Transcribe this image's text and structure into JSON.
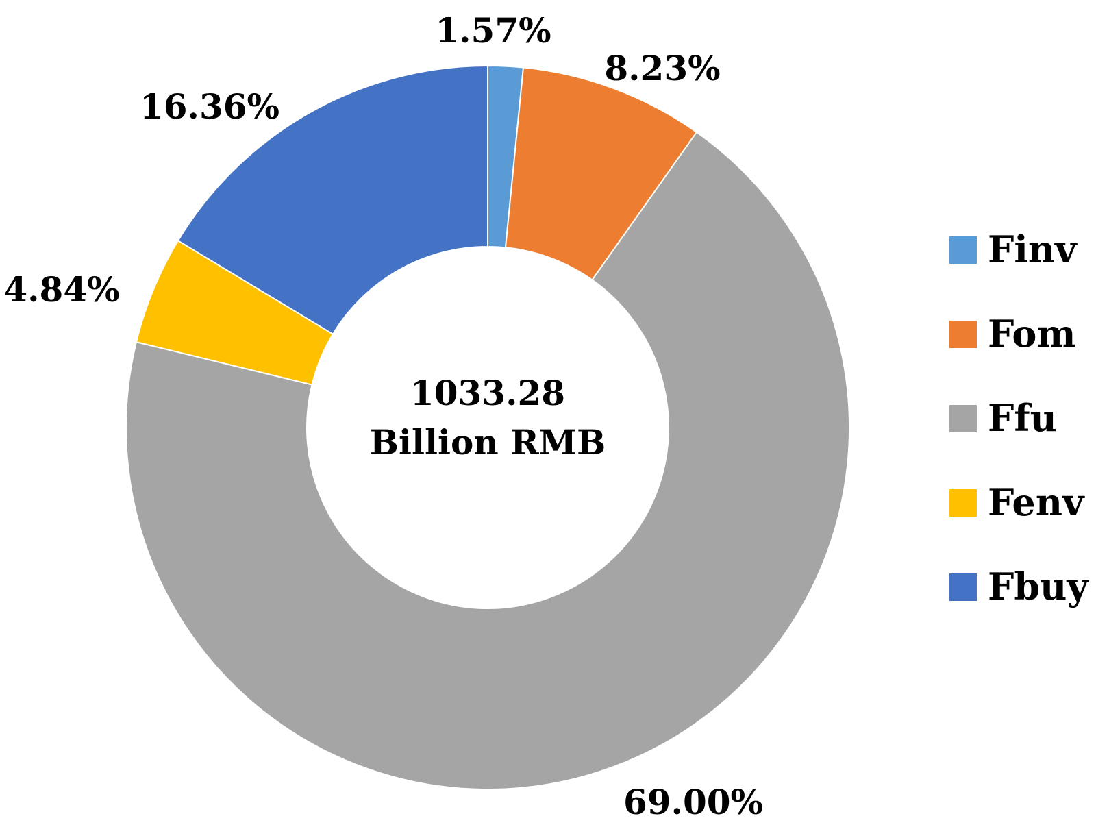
{
  "chart_data": {
    "type": "pie",
    "variant": "donut",
    "center_label": {
      "value": "1033.28",
      "unit": "Billion RMB"
    },
    "slices": [
      {
        "name": "Finv",
        "value": 1.57,
        "label": "1.57%",
        "color": "#5B9BD5"
      },
      {
        "name": "Fom",
        "value": 8.23,
        "label": "8.23%",
        "color": "#ED7D31"
      },
      {
        "name": "Ffu",
        "value": 69.0,
        "label": "69.00%",
        "color": "#A5A5A5"
      },
      {
        "name": "Fenv",
        "value": 4.84,
        "label": "4.84%",
        "color": "#FFC000"
      },
      {
        "name": "Fbuy",
        "value": 16.36,
        "label": "16.36%",
        "color": "#4472C4"
      }
    ],
    "start_angle": "top",
    "direction": "clockwise",
    "legend_position": "right"
  }
}
